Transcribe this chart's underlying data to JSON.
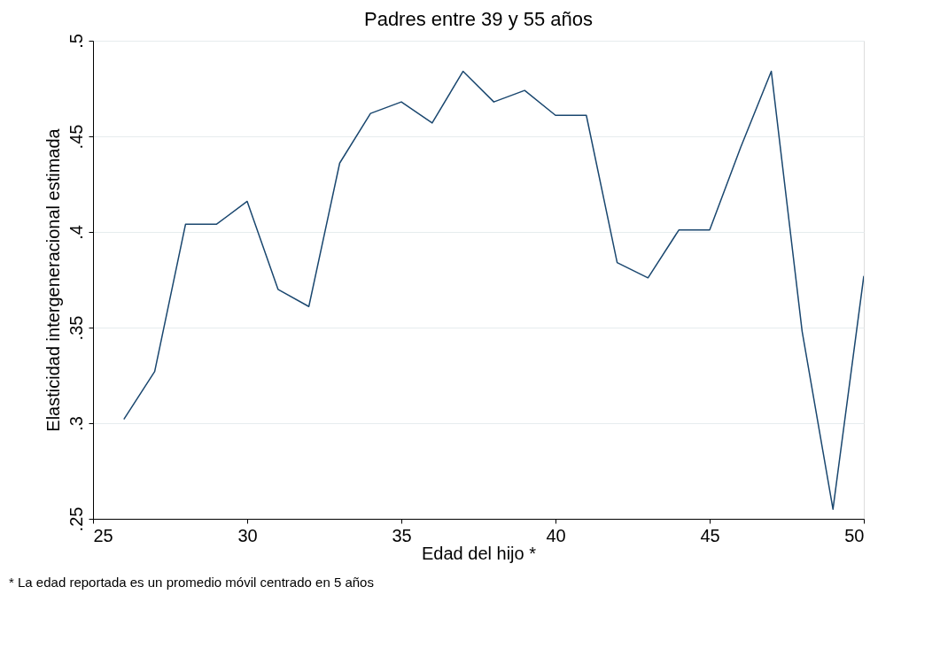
{
  "chart_data": {
    "type": "line",
    "title": "Padres entre 39 y 55 años",
    "xlabel": "Edad del hijo *",
    "ylabel": "Elasticidad intergeneracional estimada",
    "x": [
      26,
      27,
      28,
      29,
      30,
      31,
      32,
      33,
      34,
      35,
      36,
      37,
      38,
      39,
      40,
      41,
      42,
      43,
      44,
      45,
      46,
      47,
      48,
      49,
      50
    ],
    "series": [
      {
        "color": "#1a476f",
        "values": [
          0.302,
          0.327,
          0.404,
          0.404,
          0.416,
          0.37,
          0.361,
          0.436,
          0.462,
          0.468,
          0.457,
          0.484,
          0.468,
          0.474,
          0.461,
          0.461,
          0.384,
          0.376,
          0.401,
          0.401,
          0.444,
          0.484,
          0.348,
          0.255,
          0.377
        ]
      }
    ],
    "xlim": [
      25,
      50
    ],
    "xticks": [
      25,
      30,
      35,
      40,
      45,
      50
    ],
    "ylim": [
      0.25,
      0.5
    ],
    "yticks": [
      {
        "value": 0.25,
        "label": ".25"
      },
      {
        "value": 0.3,
        "label": ".3"
      },
      {
        "value": 0.35,
        "label": ".35"
      },
      {
        "value": 0.4,
        "label": ".4"
      },
      {
        "value": 0.45,
        "label": ".45"
      },
      {
        "value": 0.5,
        "label": ".5"
      }
    ],
    "grid": "y",
    "marker": "none",
    "line_style": "solid",
    "annotations": [
      "* La edad reportada es un promedio móvil centrado en 5 años"
    ]
  }
}
